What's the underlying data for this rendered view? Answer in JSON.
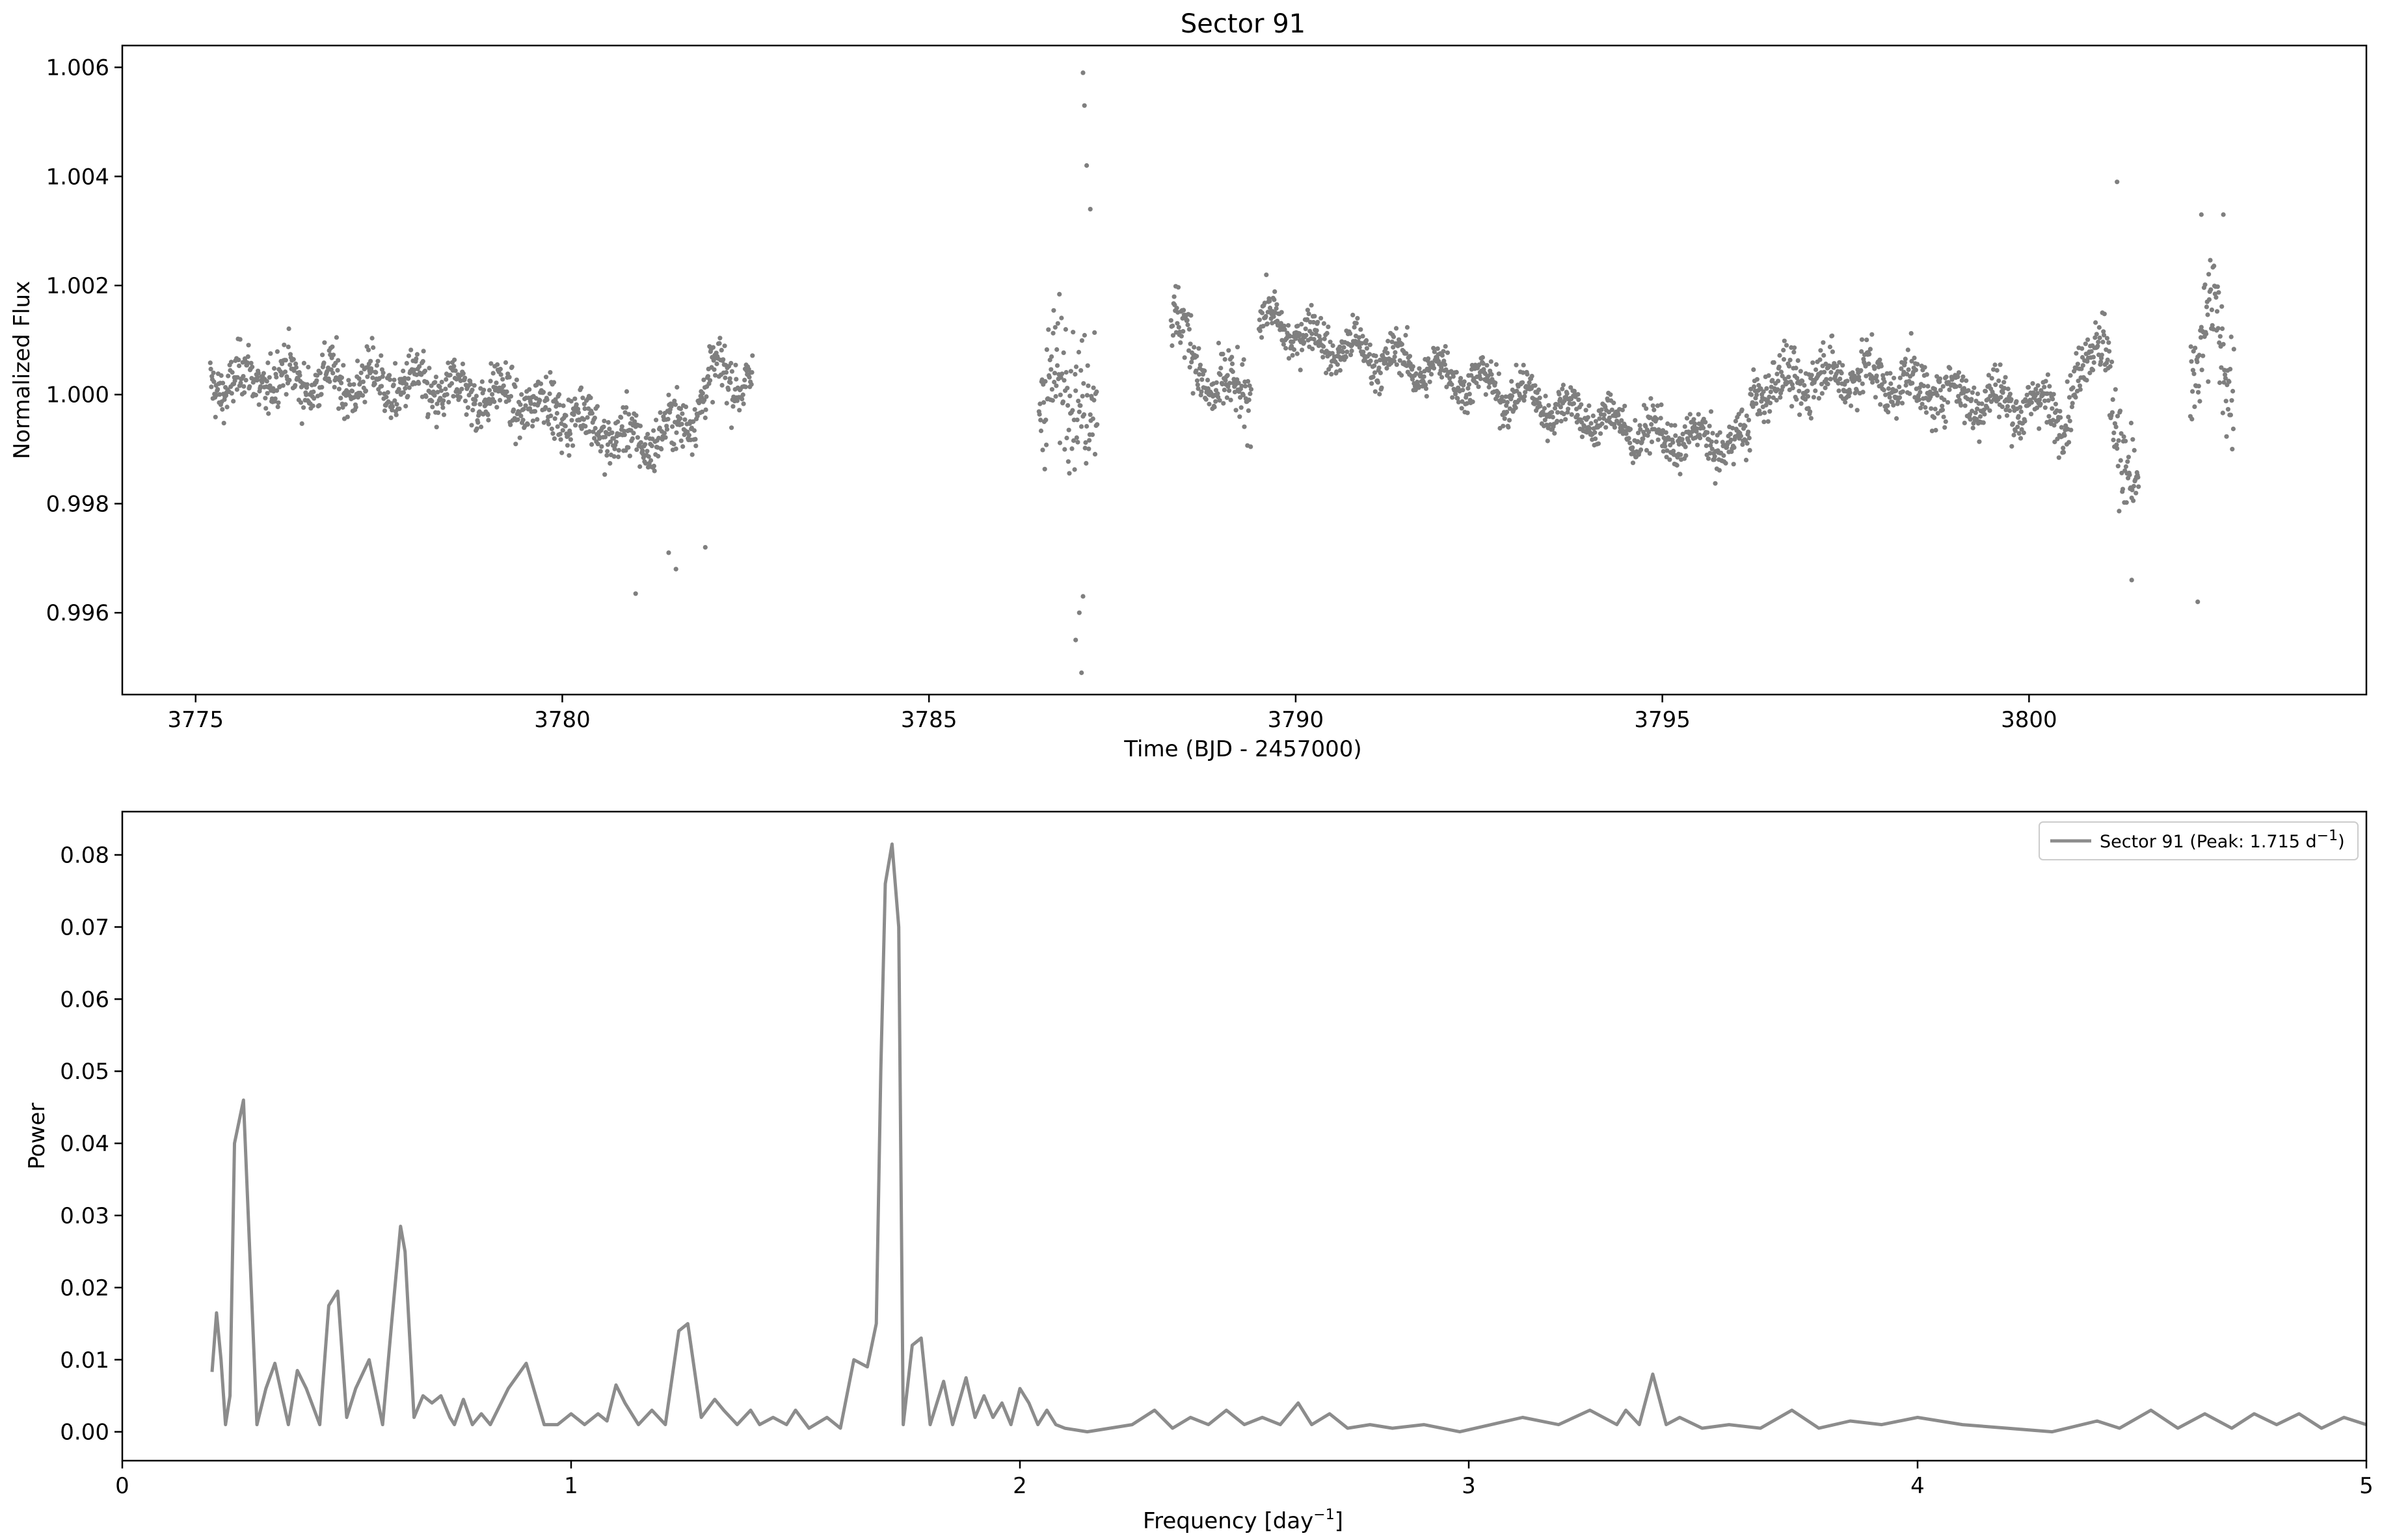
{
  "chart_data": [
    {
      "type": "scatter",
      "title": "Sector 91",
      "xlabel": "Time (BJD - 2457000)",
      "ylabel": "Normalized Flux",
      "xlim": [
        3774,
        3804.6
      ],
      "ylim": [
        0.9945,
        1.0064
      ],
      "xticks": [
        3775,
        3780,
        3785,
        3790,
        3795,
        3800
      ],
      "yticks": [
        0.996,
        0.998,
        1.0,
        1.002,
        1.004,
        1.006
      ],
      "ytick_labels": [
        "0.996",
        "0.998",
        "1.000",
        "1.002",
        "1.004",
        "1.006"
      ],
      "grid": false,
      "color": "#7f7f7f",
      "segments": [
        {
          "t_start": 3775.2,
          "t_end": 3782.6,
          "trend": [
            [
              3775.2,
              1.0002
            ],
            [
              3776.0,
              1.0003
            ],
            [
              3777.5,
              1.0002
            ],
            [
              3779.0,
              1.0
            ],
            [
              3780.0,
              0.9997
            ],
            [
              3781.0,
              0.9991
            ],
            [
              3781.6,
              0.9994
            ],
            [
              3782.2,
              1.0005
            ],
            [
              3782.6,
              1.0001
            ]
          ],
          "scatter": 0.0005
        },
        {
          "t_start": 3786.5,
          "t_end": 3787.3,
          "trend": [
            [
              3786.5,
              1.0
            ],
            [
              3786.9,
              1.0003
            ],
            [
              3787.3,
              0.9998
            ]
          ],
          "scatter": 0.0012
        },
        {
          "t_start": 3788.3,
          "t_end": 3789.4,
          "trend": [
            [
              3788.3,
              1.0015
            ],
            [
              3788.9,
              1.0
            ],
            [
              3789.4,
              1.0001
            ]
          ],
          "scatter": 0.0006
        },
        {
          "t_start": 3789.5,
          "t_end": 3796.2,
          "trend": [
            [
              3789.5,
              1.0014
            ],
            [
              3790.5,
              1.0009
            ],
            [
              3792.0,
              1.0004
            ],
            [
              3793.5,
              0.9998
            ],
            [
              3795.0,
              0.9992
            ],
            [
              3796.2,
              0.9991
            ]
          ],
          "scatter": 0.0004
        },
        {
          "t_start": 3796.2,
          "t_end": 3801.0,
          "trend": [
            [
              3796.2,
              1.0001
            ],
            [
              3797.5,
              1.0004
            ],
            [
              3799.0,
              1.0
            ],
            [
              3800.5,
              0.9997
            ],
            [
              3801.0,
              1.0012
            ]
          ],
          "scatter": 0.0005
        },
        {
          "t_start": 3801.0,
          "t_end": 3801.5,
          "trend": [
            [
              3801.0,
              1.0015
            ],
            [
              3801.3,
              0.9982
            ],
            [
              3801.5,
              0.9985
            ]
          ],
          "scatter": 0.0009
        },
        {
          "t_start": 3802.2,
          "t_end": 3802.8,
          "trend": [
            [
              3802.2,
              1.0
            ],
            [
              3802.5,
              1.0015
            ],
            [
              3802.8,
              1.0
            ]
          ],
          "scatter": 0.001
        }
      ],
      "outliers": [
        [
          3781.0,
          0.99635
        ],
        [
          3781.55,
          0.9968
        ],
        [
          3781.45,
          0.9971
        ],
        [
          3781.95,
          0.9972
        ],
        [
          3787.1,
          1.0059
        ],
        [
          3787.12,
          1.0053
        ],
        [
          3787.15,
          1.0042
        ],
        [
          3787.2,
          1.0034
        ],
        [
          3787.0,
          0.9955
        ],
        [
          3787.05,
          0.996
        ],
        [
          3787.1,
          0.9963
        ],
        [
          3787.08,
          0.9949
        ],
        [
          3801.2,
          1.0039
        ],
        [
          3801.4,
          0.9966
        ],
        [
          3802.3,
          0.9962
        ],
        [
          3802.35,
          1.0033
        ],
        [
          3802.65,
          1.0033
        ]
      ]
    },
    {
      "type": "line",
      "xlabel": "Frequency [day",
      "xlabel_sup": "−1",
      "xlabel_close": "]",
      "ylabel": "Power",
      "xlim": [
        0,
        5
      ],
      "ylim": [
        -0.004,
        0.086
      ],
      "xticks": [
        0,
        1,
        2,
        3,
        4,
        5
      ],
      "yticks": [
        0.0,
        0.01,
        0.02,
        0.03,
        0.04,
        0.05,
        0.06,
        0.07,
        0.08
      ],
      "ytick_labels": [
        "0.00",
        "0.01",
        "0.02",
        "0.03",
        "0.04",
        "0.05",
        "0.06",
        "0.07",
        "0.08"
      ],
      "grid": false,
      "color": "#8c8c8c",
      "legend_position": "top-right",
      "series": [
        {
          "name": "Sector 91 (Peak: 1.715 d",
          "name_sup": "−1",
          "name_close": ")",
          "x": [
            0.2,
            0.21,
            0.22,
            0.23,
            0.24,
            0.25,
            0.27,
            0.3,
            0.32,
            0.34,
            0.37,
            0.39,
            0.41,
            0.44,
            0.46,
            0.48,
            0.5,
            0.52,
            0.55,
            0.58,
            0.6,
            0.62,
            0.63,
            0.65,
            0.67,
            0.69,
            0.71,
            0.73,
            0.74,
            0.76,
            0.78,
            0.8,
            0.82,
            0.86,
            0.9,
            0.94,
            0.97,
            1.0,
            1.03,
            1.06,
            1.08,
            1.1,
            1.12,
            1.15,
            1.18,
            1.21,
            1.24,
            1.26,
            1.29,
            1.32,
            1.34,
            1.37,
            1.4,
            1.42,
            1.45,
            1.48,
            1.5,
            1.53,
            1.57,
            1.6,
            1.63,
            1.66,
            1.68,
            1.69,
            1.7,
            1.715,
            1.73,
            1.74,
            1.76,
            1.78,
            1.8,
            1.83,
            1.85,
            1.88,
            1.9,
            1.92,
            1.94,
            1.96,
            1.98,
            2.0,
            2.02,
            2.04,
            2.06,
            2.08,
            2.1,
            2.15,
            2.2,
            2.25,
            2.3,
            2.34,
            2.38,
            2.42,
            2.46,
            2.5,
            2.54,
            2.58,
            2.62,
            2.65,
            2.69,
            2.73,
            2.78,
            2.83,
            2.9,
            2.98,
            3.05,
            3.12,
            3.2,
            3.27,
            3.33,
            3.35,
            3.38,
            3.41,
            3.44,
            3.47,
            3.52,
            3.58,
            3.65,
            3.72,
            3.78,
            3.85,
            3.92,
            4.0,
            4.1,
            4.2,
            4.3,
            4.4,
            4.45,
            4.52,
            4.58,
            4.64,
            4.7,
            4.75,
            4.8,
            4.85,
            4.9,
            4.95,
            5.0
          ],
          "y": [
            0.0083,
            0.0165,
            0.01,
            0.001,
            0.005,
            0.04,
            0.046,
            0.001,
            0.006,
            0.0095,
            0.001,
            0.0085,
            0.006,
            0.001,
            0.0175,
            0.0195,
            0.002,
            0.006,
            0.01,
            0.001,
            0.015,
            0.0285,
            0.025,
            0.002,
            0.005,
            0.004,
            0.005,
            0.002,
            0.001,
            0.0045,
            0.001,
            0.0025,
            0.001,
            0.006,
            0.0095,
            0.001,
            0.001,
            0.0025,
            0.001,
            0.0025,
            0.0015,
            0.0065,
            0.004,
            0.001,
            0.003,
            0.001,
            0.014,
            0.015,
            0.002,
            0.0045,
            0.003,
            0.001,
            0.003,
            0.001,
            0.002,
            0.001,
            0.003,
            0.0005,
            0.002,
            0.0005,
            0.01,
            0.009,
            0.015,
            0.05,
            0.076,
            0.0815,
            0.07,
            0.001,
            0.012,
            0.013,
            0.001,
            0.007,
            0.001,
            0.0075,
            0.002,
            0.005,
            0.002,
            0.004,
            0.001,
            0.006,
            0.004,
            0.001,
            0.003,
            0.001,
            0.0005,
            0.0,
            0.0005,
            0.001,
            0.003,
            0.0005,
            0.002,
            0.001,
            0.003,
            0.001,
            0.002,
            0.001,
            0.004,
            0.001,
            0.0025,
            0.0005,
            0.001,
            0.0005,
            0.001,
            0.0,
            0.001,
            0.002,
            0.001,
            0.003,
            0.001,
            0.003,
            0.001,
            0.008,
            0.001,
            0.002,
            0.0005,
            0.001,
            0.0005,
            0.003,
            0.0005,
            0.0015,
            0.001,
            0.002,
            0.001,
            0.0005,
            0.0,
            0.0015,
            0.0005,
            0.003,
            0.0005,
            0.0025,
            0.0005,
            0.0025,
            0.001,
            0.0025,
            0.0005,
            0.002,
            0.001
          ]
        }
      ]
    }
  ]
}
